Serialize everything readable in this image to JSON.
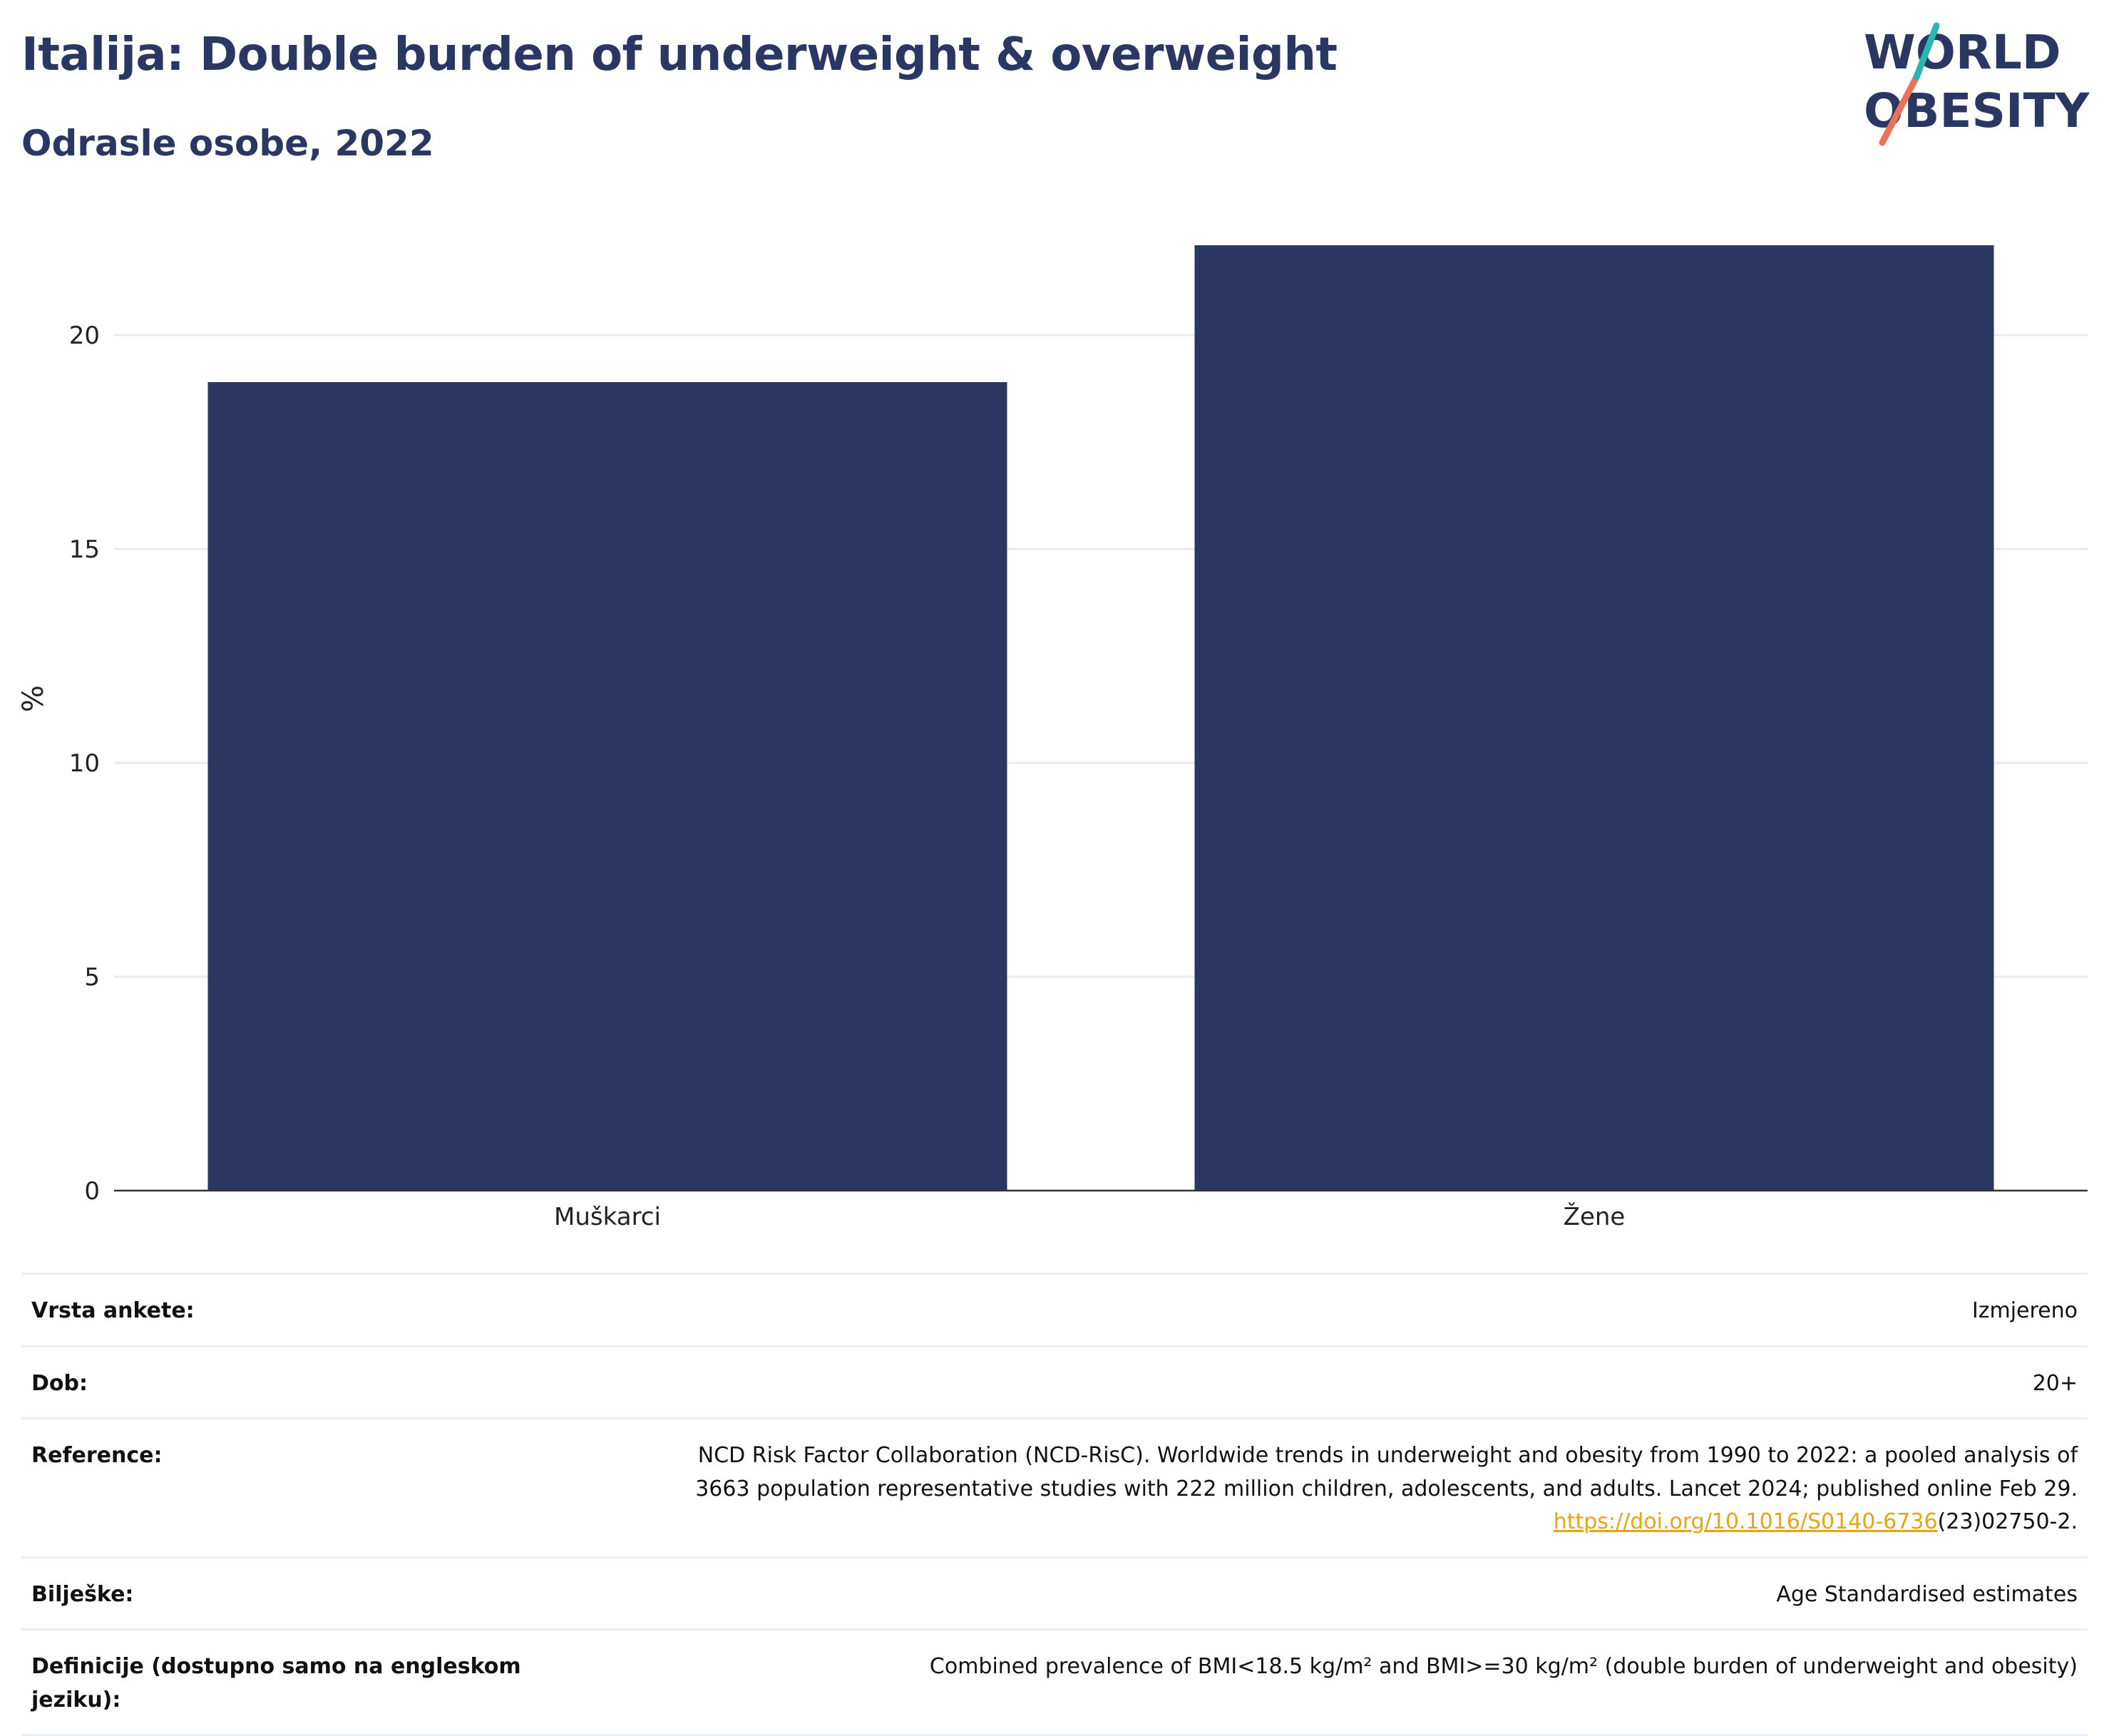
{
  "header": {
    "title": "Italija: Double burden of underweight & overweight",
    "subtitle": "Odrasle osobe, 2022"
  },
  "logo": {
    "line1": "WORLD",
    "line2": "OBESITY",
    "colors": {
      "text": "#2b3763",
      "accent_teal": "#2ab5b0",
      "accent_coral": "#e8735a"
    }
  },
  "chart_data": {
    "type": "bar",
    "categories": [
      "Muškarci",
      "Žene"
    ],
    "values": [
      18.9,
      22.1
    ],
    "title": "",
    "xlabel": "",
    "ylabel": "%",
    "ylim": [
      0,
      23
    ],
    "yticks": [
      0,
      5,
      10,
      15,
      20
    ],
    "grid": true,
    "bar_color": "#2b3763"
  },
  "info": {
    "rows": [
      {
        "key": "Vrsta ankete:",
        "value": "Izmjereno"
      },
      {
        "key": "Dob:",
        "value": "20+"
      },
      {
        "key": "Reference:",
        "line1": "NCD Risk Factor Collaboration (NCD-RisC). Worldwide trends in underweight and obesity from 1990 to 2022: a pooled analysis of",
        "line2": "3663 population representative studies with 222 million children, adolescents, and adults. Lancet 2024; published online Feb 29.",
        "link": "https://doi.org/10.1016/S0140-6736",
        "link_suffix": "(23)02750-2."
      },
      {
        "key": "Bilješke:",
        "value": "Age Standardised estimates"
      },
      {
        "key": "Definicije (dostupno samo na engleskom jeziku):",
        "value": "Combined prevalence of BMI<18.5 kg/m² and BMI>=30 kg/m² (double burden of underweight and obesity)"
      }
    ]
  }
}
